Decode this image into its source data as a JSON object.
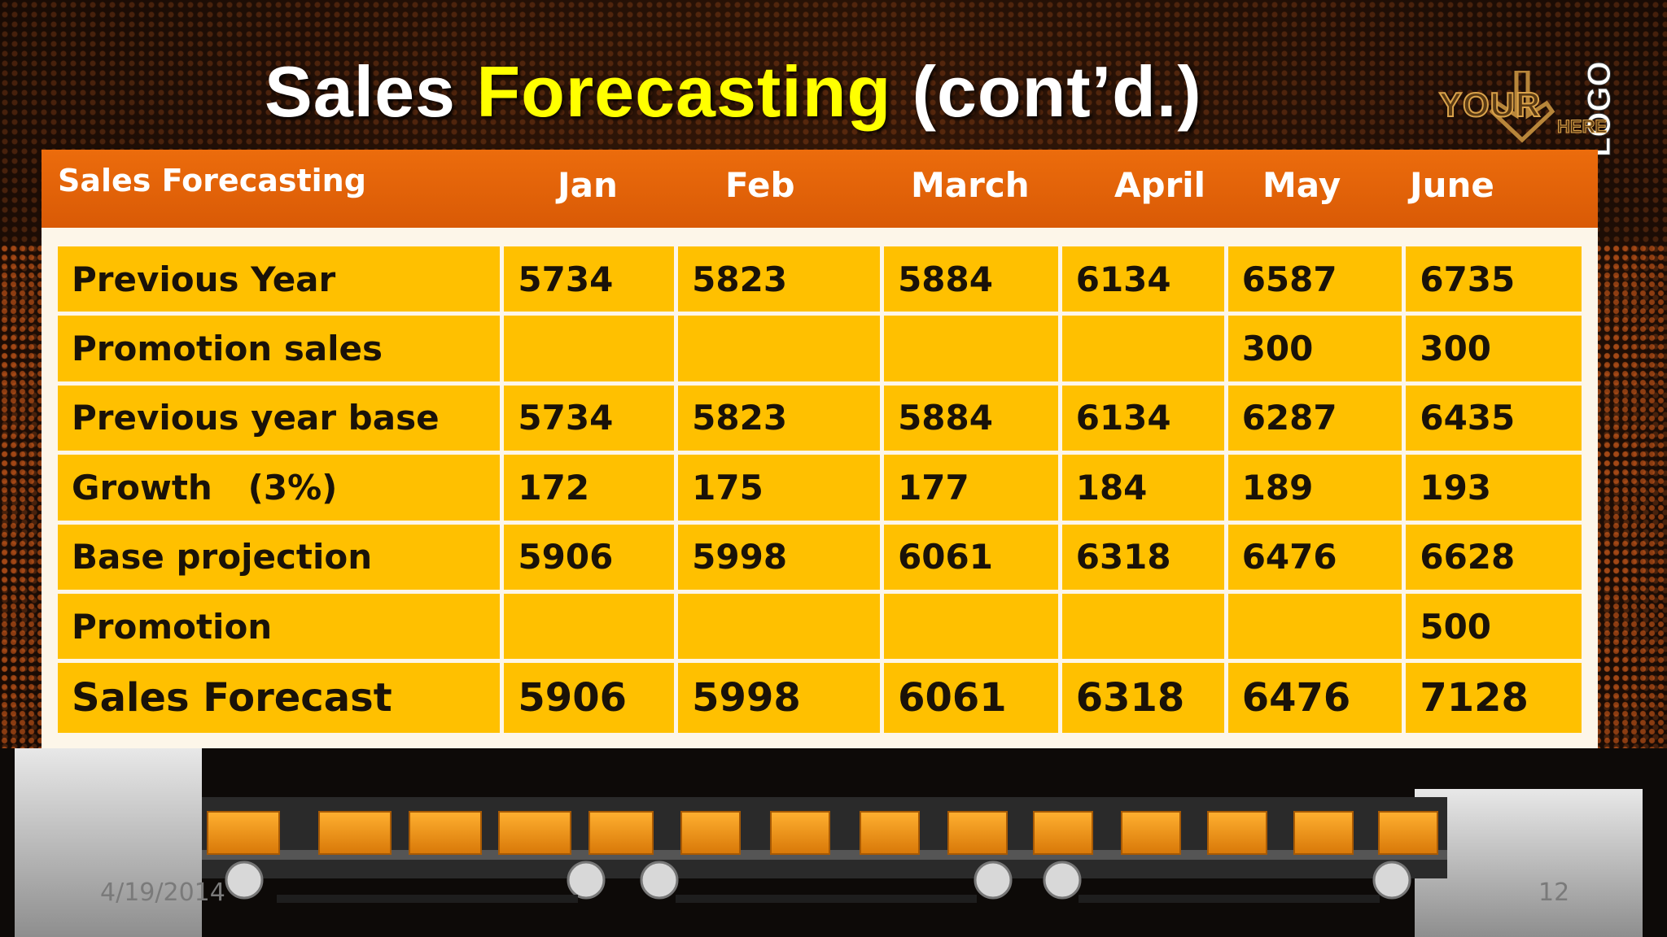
{
  "slide": {
    "title_part1": "Sales ",
    "title_accent": "Forecasting",
    "title_part2": " (cont’d.)",
    "logo": {
      "line1": "YOUR",
      "line2": "LOGO",
      "line3": "HERE"
    },
    "date": "4/19/2014",
    "page_number": "12"
  },
  "table": {
    "header_label": "Sales Forecasting",
    "months": [
      "Jan",
      "Feb",
      "March",
      "April",
      "May",
      "June"
    ],
    "rows": [
      {
        "label": "Previous Year",
        "values": [
          "5734",
          "5823",
          "5884",
          "6134",
          "6587",
          "6735"
        ]
      },
      {
        "label": "Promotion sales",
        "values": [
          "",
          "",
          "",
          "",
          "300",
          "300"
        ]
      },
      {
        "label": "Previous year base",
        "values": [
          "5734",
          "5823",
          "5884",
          "6134",
          "6287",
          "6435"
        ]
      },
      {
        "label": "Growth   (3%)",
        "values": [
          "172",
          "175",
          "177",
          "184",
          "189",
          "193"
        ]
      },
      {
        "label": "Base projection",
        "values": [
          "5906",
          "5998",
          "6061",
          "6318",
          "6476",
          "6628"
        ]
      },
      {
        "label": "Promotion",
        "values": [
          "",
          "",
          "",
          "",
          "",
          "500"
        ]
      },
      {
        "label": "Sales Forecast",
        "values": [
          "5906",
          "5998",
          "6061",
          "6318",
          "6476",
          "7128"
        ]
      }
    ]
  },
  "colors": {
    "header_bar": "#e3620a",
    "cell_fill": "#ffc000",
    "title_accent": "#ffff00",
    "title_text": "#ffffff"
  }
}
